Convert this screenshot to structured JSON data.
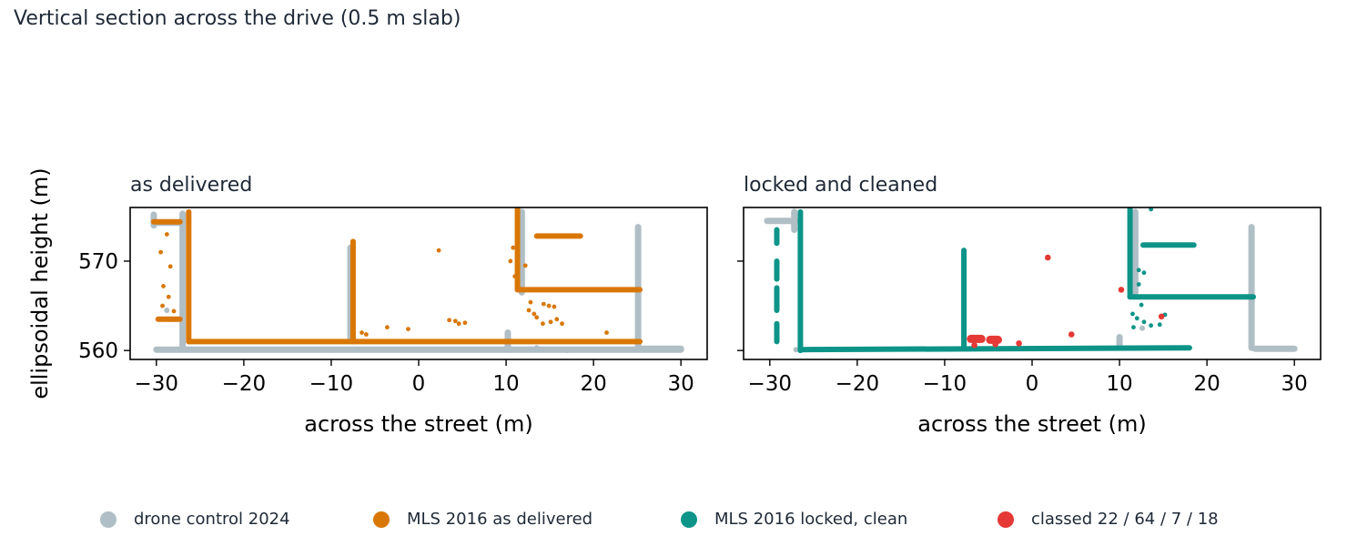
{
  "title": "Vertical section across the drive (0.5 m slab)",
  "colors": {
    "drone": "#b0bec5",
    "mls_raw": "#d97706",
    "mls_clean": "#0d9488",
    "classed": "#e53935"
  },
  "legend": [
    {
      "label": "drone control 2024",
      "color": "#b0bec5"
    },
    {
      "label": "MLS 2016 as delivered",
      "color": "#d97706"
    },
    {
      "label": "MLS 2016 locked, clean",
      "color": "#0d9488"
    },
    {
      "label": "classed 22 / 64 / 7 / 18",
      "color": "#e53935"
    }
  ],
  "chart_data": [
    {
      "type": "scatter",
      "title": "as delivered",
      "xlabel": "across the street (m)",
      "ylabel": "ellipsoidal height (m)",
      "xlim": [
        -33,
        33
      ],
      "ylim": [
        559,
        576
      ],
      "xticks": [
        -30,
        -20,
        -10,
        0,
        10,
        20,
        30
      ],
      "yticks": [
        560,
        570
      ],
      "grid": false,
      "series": [
        {
          "name": "drone control 2024",
          "segments": [
            [
              -30,
              560.1,
              30,
              560.1
            ],
            [
              -30.3,
              575.2,
              -30.3,
              574.0
            ],
            [
              -30.3,
              574.3,
              -27,
              574.3
            ],
            [
              -27,
              575.3,
              -27,
              560.2
            ],
            [
              -7.8,
              571.5,
              -7.8,
              561.5
            ],
            [
              10.2,
              562,
              10.2,
              560.3
            ],
            [
              11.8,
              575.5,
              11.8,
              566.5
            ],
            [
              25.1,
              573.8,
              25.1,
              560.3
            ],
            [
              25.5,
              560.2,
              30,
              560.2
            ]
          ],
          "points": [
            [
              17,
              560.0
            ],
            [
              13.5,
              560.3
            ],
            [
              -28,
              563.5
            ],
            [
              -28.8,
              564.5
            ]
          ]
        },
        {
          "name": "MLS 2016 as delivered",
          "segments": [
            [
              -26.3,
              575.5,
              -26.3,
              561.0
            ],
            [
              -26.3,
              561.0,
              25.3,
              561.0
            ],
            [
              -7.5,
              572.2,
              -7.5,
              561.0
            ],
            [
              11.3,
              576,
              11.3,
              566.8
            ],
            [
              11.3,
              566.8,
              25.3,
              566.8
            ],
            [
              13.5,
              572.8,
              18.5,
              572.8
            ],
            [
              -30.3,
              574.4,
              -27.3,
              574.4
            ],
            [
              -29.8,
              563.5,
              -27.3,
              563.5
            ]
          ],
          "points": [
            [
              2.3,
              571.2
            ],
            [
              3.5,
              563.4
            ],
            [
              4.2,
              563.3
            ],
            [
              4.6,
              563.0
            ],
            [
              5.3,
              563.1
            ],
            [
              21.5,
              562.0
            ],
            [
              14.3,
              565.2
            ],
            [
              14.9,
              565.0
            ],
            [
              15.5,
              564.9
            ],
            [
              13.2,
              564.1
            ],
            [
              15.8,
              563.5
            ],
            [
              14.2,
              563.0
            ],
            [
              15.1,
              563.2
            ],
            [
              16.4,
              563.0
            ],
            [
              12.8,
              565.4
            ],
            [
              13.5,
              563.7
            ],
            [
              -28.8,
              573.0
            ],
            [
              -29.5,
              571.0
            ],
            [
              -28.4,
              569.4
            ],
            [
              -29.2,
              567.2
            ],
            [
              -28.6,
              566.0
            ],
            [
              -29.3,
              565.0
            ],
            [
              -28.0,
              564.4
            ],
            [
              -3.6,
              562.6
            ],
            [
              -1.2,
              562.4
            ],
            [
              -6.5,
              562.0
            ],
            [
              -6.0,
              561.8
            ],
            [
              10.8,
              571.5
            ],
            [
              10.5,
              570.0
            ],
            [
              12.2,
              569.5
            ],
            [
              11.0,
              568.3
            ],
            [
              12.6,
              564.5
            ]
          ]
        }
      ]
    },
    {
      "type": "scatter",
      "title": "locked and cleaned",
      "xlabel": "across the street (m)",
      "ylabel": "ellipsoidal height (m)",
      "xlim": [
        -33,
        33
      ],
      "ylim": [
        559,
        576
      ],
      "xticks": [
        -30,
        -20,
        -10,
        0,
        10,
        20,
        30
      ],
      "yticks": [
        560,
        570
      ],
      "grid": false,
      "series": [
        {
          "name": "drone control 2024",
          "segments": [
            [
              -30.3,
              574.5,
              -27,
              574.5
            ],
            [
              -27.2,
              575.5,
              -27.2,
              573.5
            ],
            [
              25.1,
              573.8,
              25.1,
              560.3
            ],
            [
              25.5,
              560.2,
              30,
              560.2
            ],
            [
              11.8,
              575.5,
              11.8,
              566.5
            ],
            [
              10.0,
              561.5,
              10.0,
              560.5
            ]
          ],
          "points": [
            [
              12.6,
              562.5
            ],
            [
              -27.0,
              560.1
            ]
          ]
        },
        {
          "name": "MLS 2016 locked, clean",
          "segments": [
            [
              -26.5,
              575.5,
              -26.5,
              560.0
            ],
            [
              -26.5,
              560.1,
              18,
              560.3
            ],
            [
              -7.8,
              571.2,
              -7.8,
              560.3
            ],
            [
              11.2,
              576,
              11.2,
              566.0
            ],
            [
              11.2,
              566.0,
              25.3,
              566.0
            ],
            [
              12.7,
              571.8,
              18.5,
              571.8
            ],
            [
              -29.2,
              573.5,
              -29.2,
              572.0
            ],
            [
              -29.2,
              570.0,
              -29.2,
              568.0
            ],
            [
              -29.2,
              567.0,
              -29.2,
              564.5
            ],
            [
              -29.2,
              563.0,
              -29.2,
              561.0
            ]
          ],
          "points": [
            [
              12.2,
              569.0
            ],
            [
              12.8,
              568.7
            ],
            [
              11.5,
              564.1
            ],
            [
              12.0,
              563.6
            ],
            [
              12.8,
              563.2
            ],
            [
              13.6,
              562.8
            ],
            [
              14.6,
              562.9
            ],
            [
              15.2,
              564.0
            ],
            [
              11.6,
              562.6
            ],
            [
              12.5,
              565.1
            ],
            [
              13.6,
              575.8
            ],
            [
              12.2,
              567.4
            ]
          ]
        },
        {
          "name": "classed 22 / 64 / 7 / 18",
          "segments": [
            [
              -7.0,
              561.3,
              -5.8,
              561.3
            ],
            [
              -4.8,
              561.2,
              -3.9,
              561.2
            ]
          ],
          "points": [
            [
              1.8,
              570.4
            ],
            [
              10.2,
              566.8
            ],
            [
              4.5,
              561.8
            ],
            [
              14.8,
              563.8
            ],
            [
              -1.5,
              560.8
            ],
            [
              -6.6,
              560.6
            ],
            [
              -4.2,
              560.7
            ]
          ]
        }
      ]
    }
  ]
}
